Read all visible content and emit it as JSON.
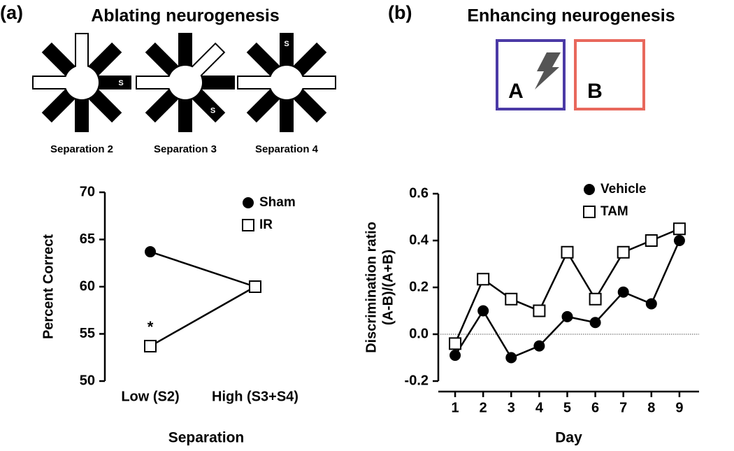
{
  "panels": [
    {
      "label": "(a)",
      "title": "Ablating neurogenesis",
      "mazes": [
        {
          "caption": "Separation 2",
          "marker": "S"
        },
        {
          "caption": "Separation 3",
          "marker": "S"
        },
        {
          "caption": "Separation 4",
          "marker": "S"
        }
      ]
    },
    {
      "label": "(b)",
      "title": "Enhancing neurogenesis",
      "boxes": [
        "A",
        "B"
      ]
    }
  ],
  "chart_data": [
    {
      "type": "line",
      "categories": [
        "Low (S2)",
        "High (S3+S4)"
      ],
      "series": [
        {
          "name": "Sham",
          "color": "#000000",
          "marker": "filled-circle",
          "values": [
            63.7,
            60
          ]
        },
        {
          "name": "IR",
          "color": "#000000",
          "marker": "open-square",
          "values": [
            53.7,
            60
          ]
        }
      ],
      "annotation": "*",
      "ylim": [
        50,
        70
      ],
      "yticks": [
        50,
        55,
        60,
        65,
        70
      ],
      "ylabel": [
        "Percent Correct"
      ],
      "xlabel": "Separation",
      "legend": "upper right"
    },
    {
      "type": "line",
      "x": [
        1,
        2,
        3,
        4,
        5,
        6,
        7,
        8,
        9
      ],
      "series": [
        {
          "name": "Vehicle",
          "color": "#000000",
          "marker": "filled-circle",
          "values": [
            -0.09,
            0.1,
            -0.1,
            -0.05,
            0.075,
            0.05,
            0.18,
            0.13,
            0.4
          ]
        },
        {
          "name": "TAM",
          "color": "#000000",
          "marker": "open-square",
          "values": [
            -0.04,
            0.235,
            0.15,
            0.1,
            0.35,
            0.15,
            0.35,
            0.4,
            0.45
          ]
        }
      ],
      "hline": 0,
      "xlim": [
        0.4,
        9.7
      ],
      "xticks": [
        1,
        2,
        3,
        4,
        5,
        6,
        7,
        8,
        9
      ],
      "ylim": [
        -0.2,
        0.6
      ],
      "yticks": [
        -0.2,
        {
          "value": 0,
          "label": "0.0"
        },
        0.2,
        0.4,
        0.6
      ],
      "ylabel": [
        "Discrimination ratio",
        "(A-B)/(A+B)"
      ],
      "xlabel": "Day",
      "legend": "upper right"
    }
  ]
}
